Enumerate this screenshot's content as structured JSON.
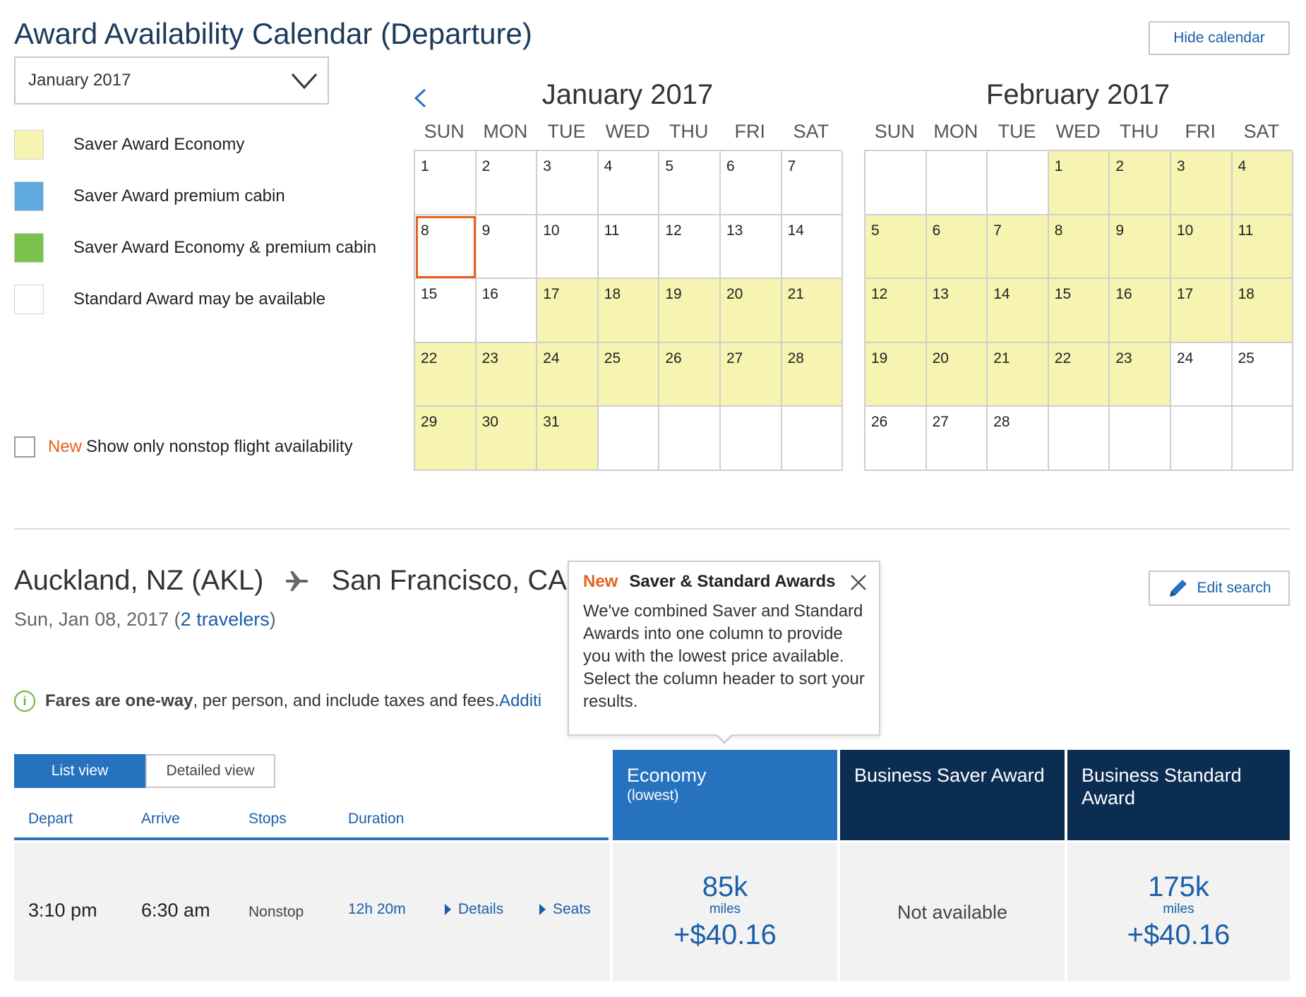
{
  "page_title": "Award Availability Calendar (Departure)",
  "hide_calendar": "Hide calendar",
  "month_select": {
    "value": "January 2017"
  },
  "legend": [
    {
      "label": "Saver Award Economy",
      "color": "#f7f3b0"
    },
    {
      "label": "Saver Award premium cabin",
      "color": "#5fa8e0"
    },
    {
      "label": "Saver Award Economy & premium cabin",
      "color": "#7ac14d"
    },
    {
      "label": "Standard Award may be available",
      "color": "#ffffff"
    }
  ],
  "nonstop": {
    "new_tag": "New",
    "label": "Show only nonstop flight availability"
  },
  "weekdays": [
    "SUN",
    "MON",
    "TUE",
    "WED",
    "THU",
    "FRI",
    "SAT"
  ],
  "calendars": [
    {
      "title": "January 2017",
      "cells": [
        {
          "d": "1",
          "s": false
        },
        {
          "d": "2",
          "s": false
        },
        {
          "d": "3",
          "s": false
        },
        {
          "d": "4",
          "s": false
        },
        {
          "d": "5",
          "s": false
        },
        {
          "d": "6",
          "s": false
        },
        {
          "d": "7",
          "s": false
        },
        {
          "d": "8",
          "s": false,
          "sel": true
        },
        {
          "d": "9",
          "s": false
        },
        {
          "d": "10",
          "s": false
        },
        {
          "d": "11",
          "s": false
        },
        {
          "d": "12",
          "s": false
        },
        {
          "d": "13",
          "s": false
        },
        {
          "d": "14",
          "s": false
        },
        {
          "d": "15",
          "s": false
        },
        {
          "d": "16",
          "s": false
        },
        {
          "d": "17",
          "s": true
        },
        {
          "d": "18",
          "s": true
        },
        {
          "d": "19",
          "s": true
        },
        {
          "d": "20",
          "s": true
        },
        {
          "d": "21",
          "s": true
        },
        {
          "d": "22",
          "s": true
        },
        {
          "d": "23",
          "s": true
        },
        {
          "d": "24",
          "s": true
        },
        {
          "d": "25",
          "s": true
        },
        {
          "d": "26",
          "s": true
        },
        {
          "d": "27",
          "s": true
        },
        {
          "d": "28",
          "s": true
        },
        {
          "d": "29",
          "s": true
        },
        {
          "d": "30",
          "s": true
        },
        {
          "d": "31",
          "s": true
        },
        {
          "d": "",
          "s": false
        },
        {
          "d": "",
          "s": false
        },
        {
          "d": "",
          "s": false
        },
        {
          "d": "",
          "s": false
        }
      ]
    },
    {
      "title": "February 2017",
      "cells": [
        {
          "d": "",
          "s": false
        },
        {
          "d": "",
          "s": false
        },
        {
          "d": "",
          "s": false
        },
        {
          "d": "1",
          "s": true
        },
        {
          "d": "2",
          "s": true
        },
        {
          "d": "3",
          "s": true
        },
        {
          "d": "4",
          "s": true
        },
        {
          "d": "5",
          "s": true
        },
        {
          "d": "6",
          "s": true
        },
        {
          "d": "7",
          "s": true
        },
        {
          "d": "8",
          "s": true
        },
        {
          "d": "9",
          "s": true
        },
        {
          "d": "10",
          "s": true
        },
        {
          "d": "11",
          "s": true
        },
        {
          "d": "12",
          "s": true
        },
        {
          "d": "13",
          "s": true
        },
        {
          "d": "14",
          "s": true
        },
        {
          "d": "15",
          "s": true
        },
        {
          "d": "16",
          "s": true
        },
        {
          "d": "17",
          "s": true
        },
        {
          "d": "18",
          "s": true
        },
        {
          "d": "19",
          "s": true
        },
        {
          "d": "20",
          "s": true
        },
        {
          "d": "21",
          "s": true
        },
        {
          "d": "22",
          "s": true
        },
        {
          "d": "23",
          "s": true
        },
        {
          "d": "24",
          "s": false
        },
        {
          "d": "25",
          "s": false
        },
        {
          "d": "26",
          "s": false
        },
        {
          "d": "27",
          "s": false
        },
        {
          "d": "28",
          "s": false
        },
        {
          "d": "",
          "s": false
        },
        {
          "d": "",
          "s": false
        },
        {
          "d": "",
          "s": false
        },
        {
          "d": "",
          "s": false
        }
      ]
    }
  ],
  "route": {
    "origin": "Auckland, NZ (AKL)",
    "destination": "San Francisco, CA, U",
    "date": "Sun, Jan 08, 2017 (",
    "travelers": "2 travelers",
    "date_close": ")"
  },
  "edit_search": "Edit search",
  "fare_note": {
    "bold": "Fares are one-way",
    "rest": ", per person, and include taxes and fees. ",
    "link": "Additi"
  },
  "tooltip": {
    "new_tag": "New",
    "title": "Saver & Standard Awards",
    "body": "We've combined Saver and Standard Awards into one column to provide you with the lowest price available. Select the column header to sort your results."
  },
  "views": {
    "list": "List view",
    "detailed": "Detailed view"
  },
  "columns": {
    "depart": "Depart",
    "arrive": "Arrive",
    "stops": "Stops",
    "duration": "Duration"
  },
  "fare_columns": [
    {
      "title": "Economy",
      "sub": "(lowest)",
      "bg": "#2672bf"
    },
    {
      "title": "Business Saver Award",
      "sub": "",
      "bg": "#0c2d52"
    },
    {
      "title": "Business Standard Award",
      "sub": "",
      "bg": "#0c2d52"
    }
  ],
  "flight": {
    "depart": "3:10 pm",
    "arrive": "6:30 am",
    "stops": "Nonstop",
    "duration": "12h 20m",
    "details": "Details",
    "seats": "Seats",
    "fares": [
      {
        "miles": "85k",
        "unit": "miles",
        "cash": "+$40.16",
        "available": true
      },
      {
        "na": "Not available",
        "available": false
      },
      {
        "miles": "175k",
        "unit": "miles",
        "cash": "+$40.16",
        "available": true
      }
    ]
  }
}
